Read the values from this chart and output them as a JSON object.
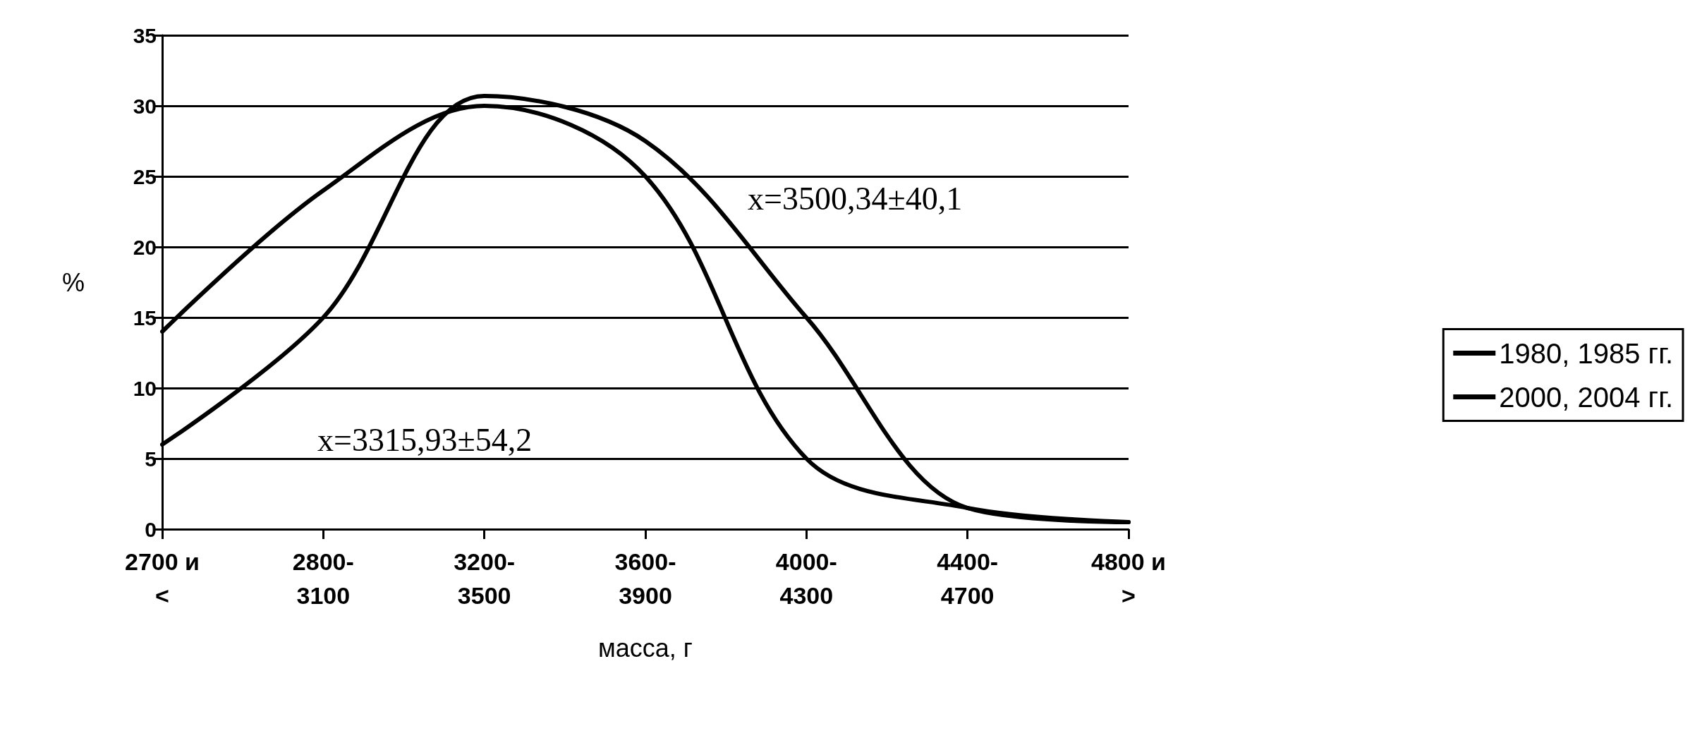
{
  "chart_data": {
    "type": "line",
    "xlabel": "масса, г",
    "ylabel": "%",
    "categories": [
      "2700 и\n<",
      "2800-\n3100",
      "3200-\n3500",
      "3600-\n3900",
      "4000-\n4300",
      "4400-\n4700",
      "4800 и\n>"
    ],
    "series": [
      {
        "name": "1980, 1985 гг.",
        "color": "#000000",
        "values": [
          14,
          24,
          30,
          25,
          5,
          1.5,
          0.5
        ]
      },
      {
        "name": "2000, 2004 гг.",
        "color": "#000000",
        "values": [
          6,
          15,
          30.7,
          27.5,
          15,
          1.5,
          0.5
        ]
      }
    ],
    "annotations": [
      "x=3500,34±40,1",
      "x=3315,93±54,2"
    ],
    "ylim": [
      0,
      35
    ],
    "yticks": [
      0,
      5,
      10,
      15,
      20,
      25,
      30,
      35
    ],
    "grid": "y",
    "legend": "right",
    "marker": "none",
    "line_style": "solid"
  }
}
